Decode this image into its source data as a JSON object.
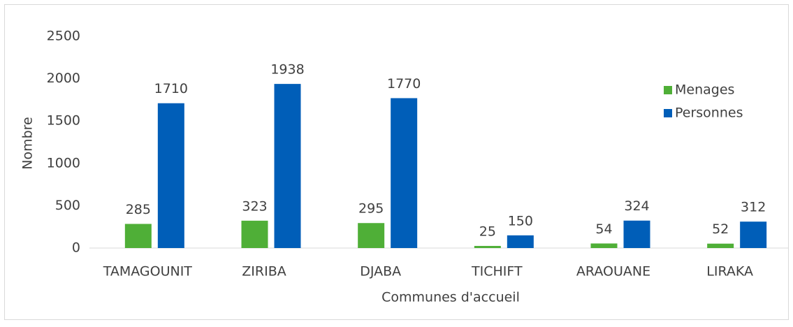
{
  "chart_data": {
    "type": "bar",
    "x_label": "Communes d'accueil",
    "y_label": "Nombre",
    "categories": [
      "TAMAGOUNIT",
      "ZIRIBA",
      "DJABA",
      "TICHIFT",
      "ARAOUANE",
      "LIRAKA"
    ],
    "series": [
      {
        "name": "Menages",
        "color": "#4faf37",
        "values": [
          285,
          323,
          295,
          25,
          54,
          52
        ]
      },
      {
        "name": "Personnes",
        "color": "#005eb8",
        "values": [
          1710,
          1938,
          1770,
          150,
          324,
          312
        ]
      }
    ],
    "ylim": [
      0,
      2500
    ],
    "yticks": [
      0,
      500,
      1000,
      1500,
      2000,
      2500
    ],
    "grid": false,
    "legend": "right"
  }
}
